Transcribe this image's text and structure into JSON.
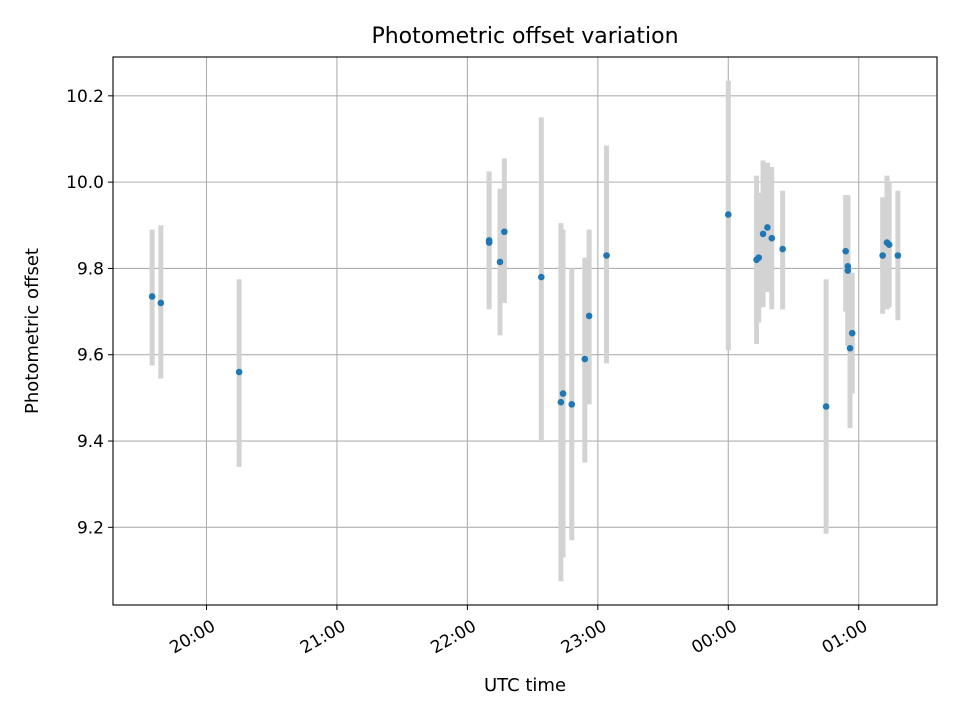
{
  "chart_data": {
    "type": "scatter",
    "title": "Photometric offset variation",
    "xlabel": "UTC time",
    "ylabel": "Photometric offset",
    "grid": true,
    "legend": null,
    "x_axis": {
      "kind": "time",
      "range": [
        "19:17",
        "01:36"
      ],
      "ticks": [
        "20:00",
        "21:00",
        "22:00",
        "23:00",
        "00:00",
        "01:00"
      ],
      "tick_label_rotation": "rotated"
    },
    "y_axis": {
      "range": [
        9.02,
        10.29
      ],
      "ticks": [
        "9.2",
        "9.4",
        "9.6",
        "9.8",
        "10.0",
        "10.2"
      ]
    },
    "colors": {
      "point": "#1f77b4",
      "error_bar": "#d3d3d3",
      "grid": "#b0b0b0"
    },
    "series": [
      {
        "points": [
          {
            "time": "19:35",
            "y": 9.735,
            "lo": 9.575,
            "hi": 9.89
          },
          {
            "time": "19:39",
            "y": 9.72,
            "lo": 9.545,
            "hi": 9.9
          },
          {
            "time": "20:15",
            "y": 9.56,
            "lo": 9.34,
            "hi": 9.775
          },
          {
            "time": "22:10",
            "y": 9.865,
            "lo": 9.705,
            "hi": 10.025
          },
          {
            "time": "22:10",
            "y": 9.86,
            "lo": 9.72,
            "hi": 10.015
          },
          {
            "time": "22:15",
            "y": 9.815,
            "lo": 9.645,
            "hi": 9.985
          },
          {
            "time": "22:17",
            "y": 9.885,
            "lo": 9.72,
            "hi": 10.055
          },
          {
            "time": "22:34",
            "y": 9.78,
            "lo": 9.4,
            "hi": 10.15
          },
          {
            "time": "22:43",
            "y": 9.49,
            "lo": 9.075,
            "hi": 9.905
          },
          {
            "time": "22:44",
            "y": 9.51,
            "lo": 9.13,
            "hi": 9.89
          },
          {
            "time": "22:48",
            "y": 9.485,
            "lo": 9.17,
            "hi": 9.8
          },
          {
            "time": "22:54",
            "y": 9.59,
            "lo": 9.35,
            "hi": 9.825
          },
          {
            "time": "22:56",
            "y": 9.69,
            "lo": 9.485,
            "hi": 9.89
          },
          {
            "time": "23:04",
            "y": 9.83,
            "lo": 9.58,
            "hi": 10.085
          },
          {
            "time": "00:00",
            "y": 9.925,
            "lo": 9.61,
            "hi": 10.235
          },
          {
            "time": "00:13",
            "y": 9.82,
            "lo": 9.625,
            "hi": 10.015
          },
          {
            "time": "00:14",
            "y": 9.825,
            "lo": 9.675,
            "hi": 9.975
          },
          {
            "time": "00:16",
            "y": 9.88,
            "lo": 9.71,
            "hi": 10.05
          },
          {
            "time": "00:18",
            "y": 9.895,
            "lo": 9.745,
            "hi": 10.045
          },
          {
            "time": "00:20",
            "y": 9.87,
            "lo": 9.705,
            "hi": 10.035
          },
          {
            "time": "00:25",
            "y": 9.845,
            "lo": 9.705,
            "hi": 9.98
          },
          {
            "time": "00:45",
            "y": 9.48,
            "lo": 9.185,
            "hi": 9.775
          },
          {
            "time": "00:54",
            "y": 9.84,
            "lo": 9.7,
            "hi": 9.97
          },
          {
            "time": "00:55",
            "y": 9.805,
            "lo": 9.62,
            "hi": 9.97
          },
          {
            "time": "00:55",
            "y": 9.795,
            "lo": 9.625,
            "hi": 9.965
          },
          {
            "time": "00:56",
            "y": 9.615,
            "lo": 9.43,
            "hi": 9.79
          },
          {
            "time": "00:57",
            "y": 9.65,
            "lo": 9.51,
            "hi": 9.79
          },
          {
            "time": "01:11",
            "y": 9.83,
            "lo": 9.695,
            "hi": 9.965
          },
          {
            "time": "01:13",
            "y": 9.86,
            "lo": 9.705,
            "hi": 10.015
          },
          {
            "time": "01:14",
            "y": 9.855,
            "lo": 9.71,
            "hi": 10.0
          },
          {
            "time": "01:18",
            "y": 9.83,
            "lo": 9.68,
            "hi": 9.98
          }
        ]
      }
    ]
  }
}
